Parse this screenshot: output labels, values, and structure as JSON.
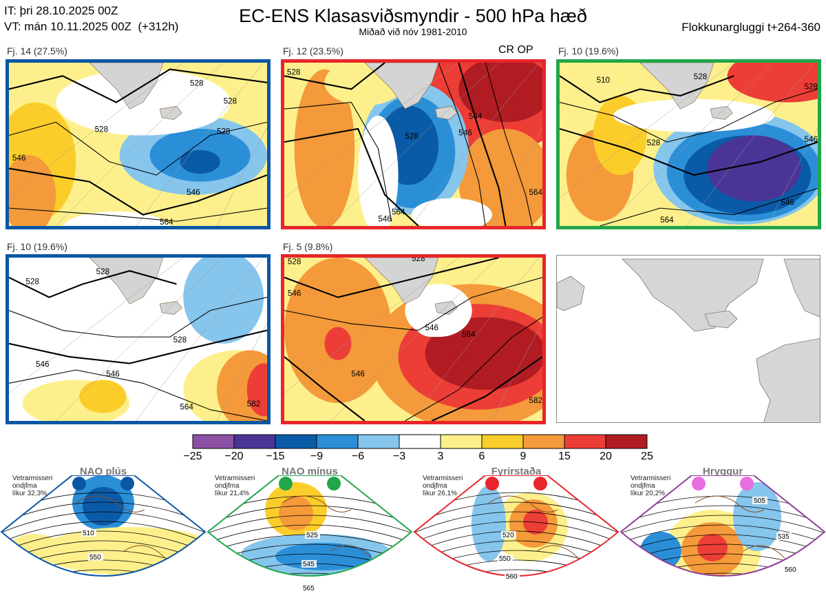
{
  "header": {
    "it_line": "IT: þri 28.10.2025 00Z",
    "vt_line": "VT: mán 10.11.2025 00Z  (+312h)",
    "title": "EC-ENS Klasasviðsmyndir - 500 hPa hæð",
    "subtitle": "Miðað við nóv 1981-2010",
    "window": "Flokkunargluggi t+264-360"
  },
  "panels": [
    {
      "label": "Fj. 14 (27.5%)",
      "border": "#0a57a4",
      "contours": [
        "528",
        "528",
        "528",
        "546",
        "546",
        "564",
        "528"
      ]
    },
    {
      "label": "Fj. 12 (23.5%)",
      "border": "#e8262b",
      "badge": "CR OP",
      "contours": [
        "528",
        "528",
        "546",
        "564",
        "564",
        "546",
        "564"
      ]
    },
    {
      "label": "Fj. 10 (19.6%)",
      "border": "#21a64a",
      "contours": [
        "510",
        "528",
        "528",
        "528",
        "546",
        "564",
        "546"
      ]
    },
    {
      "label": "Fj. 10 (19.6%)",
      "border": "#0a57a4",
      "contours": [
        "528",
        "528",
        "528",
        "546",
        "546",
        "564",
        "582"
      ]
    },
    {
      "label": "Fj. 5 (9.8%)",
      "border": "#e8262b",
      "contours": [
        "528",
        "546",
        "528",
        "546",
        "546",
        "564",
        "582"
      ]
    }
  ],
  "chart_data": {
    "type": "heatmap",
    "title": "EC-ENS Klasasviðsmyndir - 500 hPa hæð",
    "colorbar": {
      "ticks": [
        "−25",
        "−20",
        "−15",
        "−9",
        "−6",
        "−3",
        "3",
        "6",
        "9",
        "15",
        "20",
        "25"
      ],
      "colors": [
        "#8b4fa3",
        "#4a3596",
        "#0a5ba7",
        "#2b8fd8",
        "#86c5ec",
        "#ffffff",
        "#fdf08c",
        "#fbcd2a",
        "#f49a3a",
        "#ec3e36",
        "#b01c22"
      ]
    },
    "clusters": [
      {
        "cluster": "Fj. 14",
        "percent": 27.5
      },
      {
        "cluster": "Fj. 12",
        "percent": 23.5
      },
      {
        "cluster": "Fj. 10",
        "percent": 19.6
      },
      {
        "cluster": "Fj. 10",
        "percent": 19.6
      },
      {
        "cluster": "Fj. 5",
        "percent": 9.8
      }
    ],
    "regimes": [
      {
        "name": "NAO plús",
        "probability": "32,3%",
        "color": "#0a57a4",
        "dot_colors": [
          "#0a57a4",
          "#0a57a4"
        ],
        "contours": [
          "510",
          "550"
        ]
      },
      {
        "name": "NAO mínus",
        "probability": "21,4%",
        "color": "#21a64a",
        "dot_colors": [
          "#21a64a",
          "#21a64a"
        ],
        "contours": [
          "525",
          "545",
          "565"
        ]
      },
      {
        "name": "Fyrirstaða",
        "probability": "26,1%",
        "color": "#e8262b",
        "dot_colors": [
          "#e8262b",
          "#e8262b"
        ],
        "contours": [
          "520",
          "550",
          "560"
        ]
      },
      {
        "name": "Hryggur",
        "probability": "20,2%",
        "color": "#8e3d98",
        "dot_colors": [
          "#e86ddf",
          "#e86ddf"
        ],
        "contours": [
          "505",
          "535",
          "560"
        ]
      }
    ]
  },
  "regime_text": {
    "line1": "Vetrarmisseri",
    "line2": "ondjfma",
    "prefix": "líkur "
  }
}
